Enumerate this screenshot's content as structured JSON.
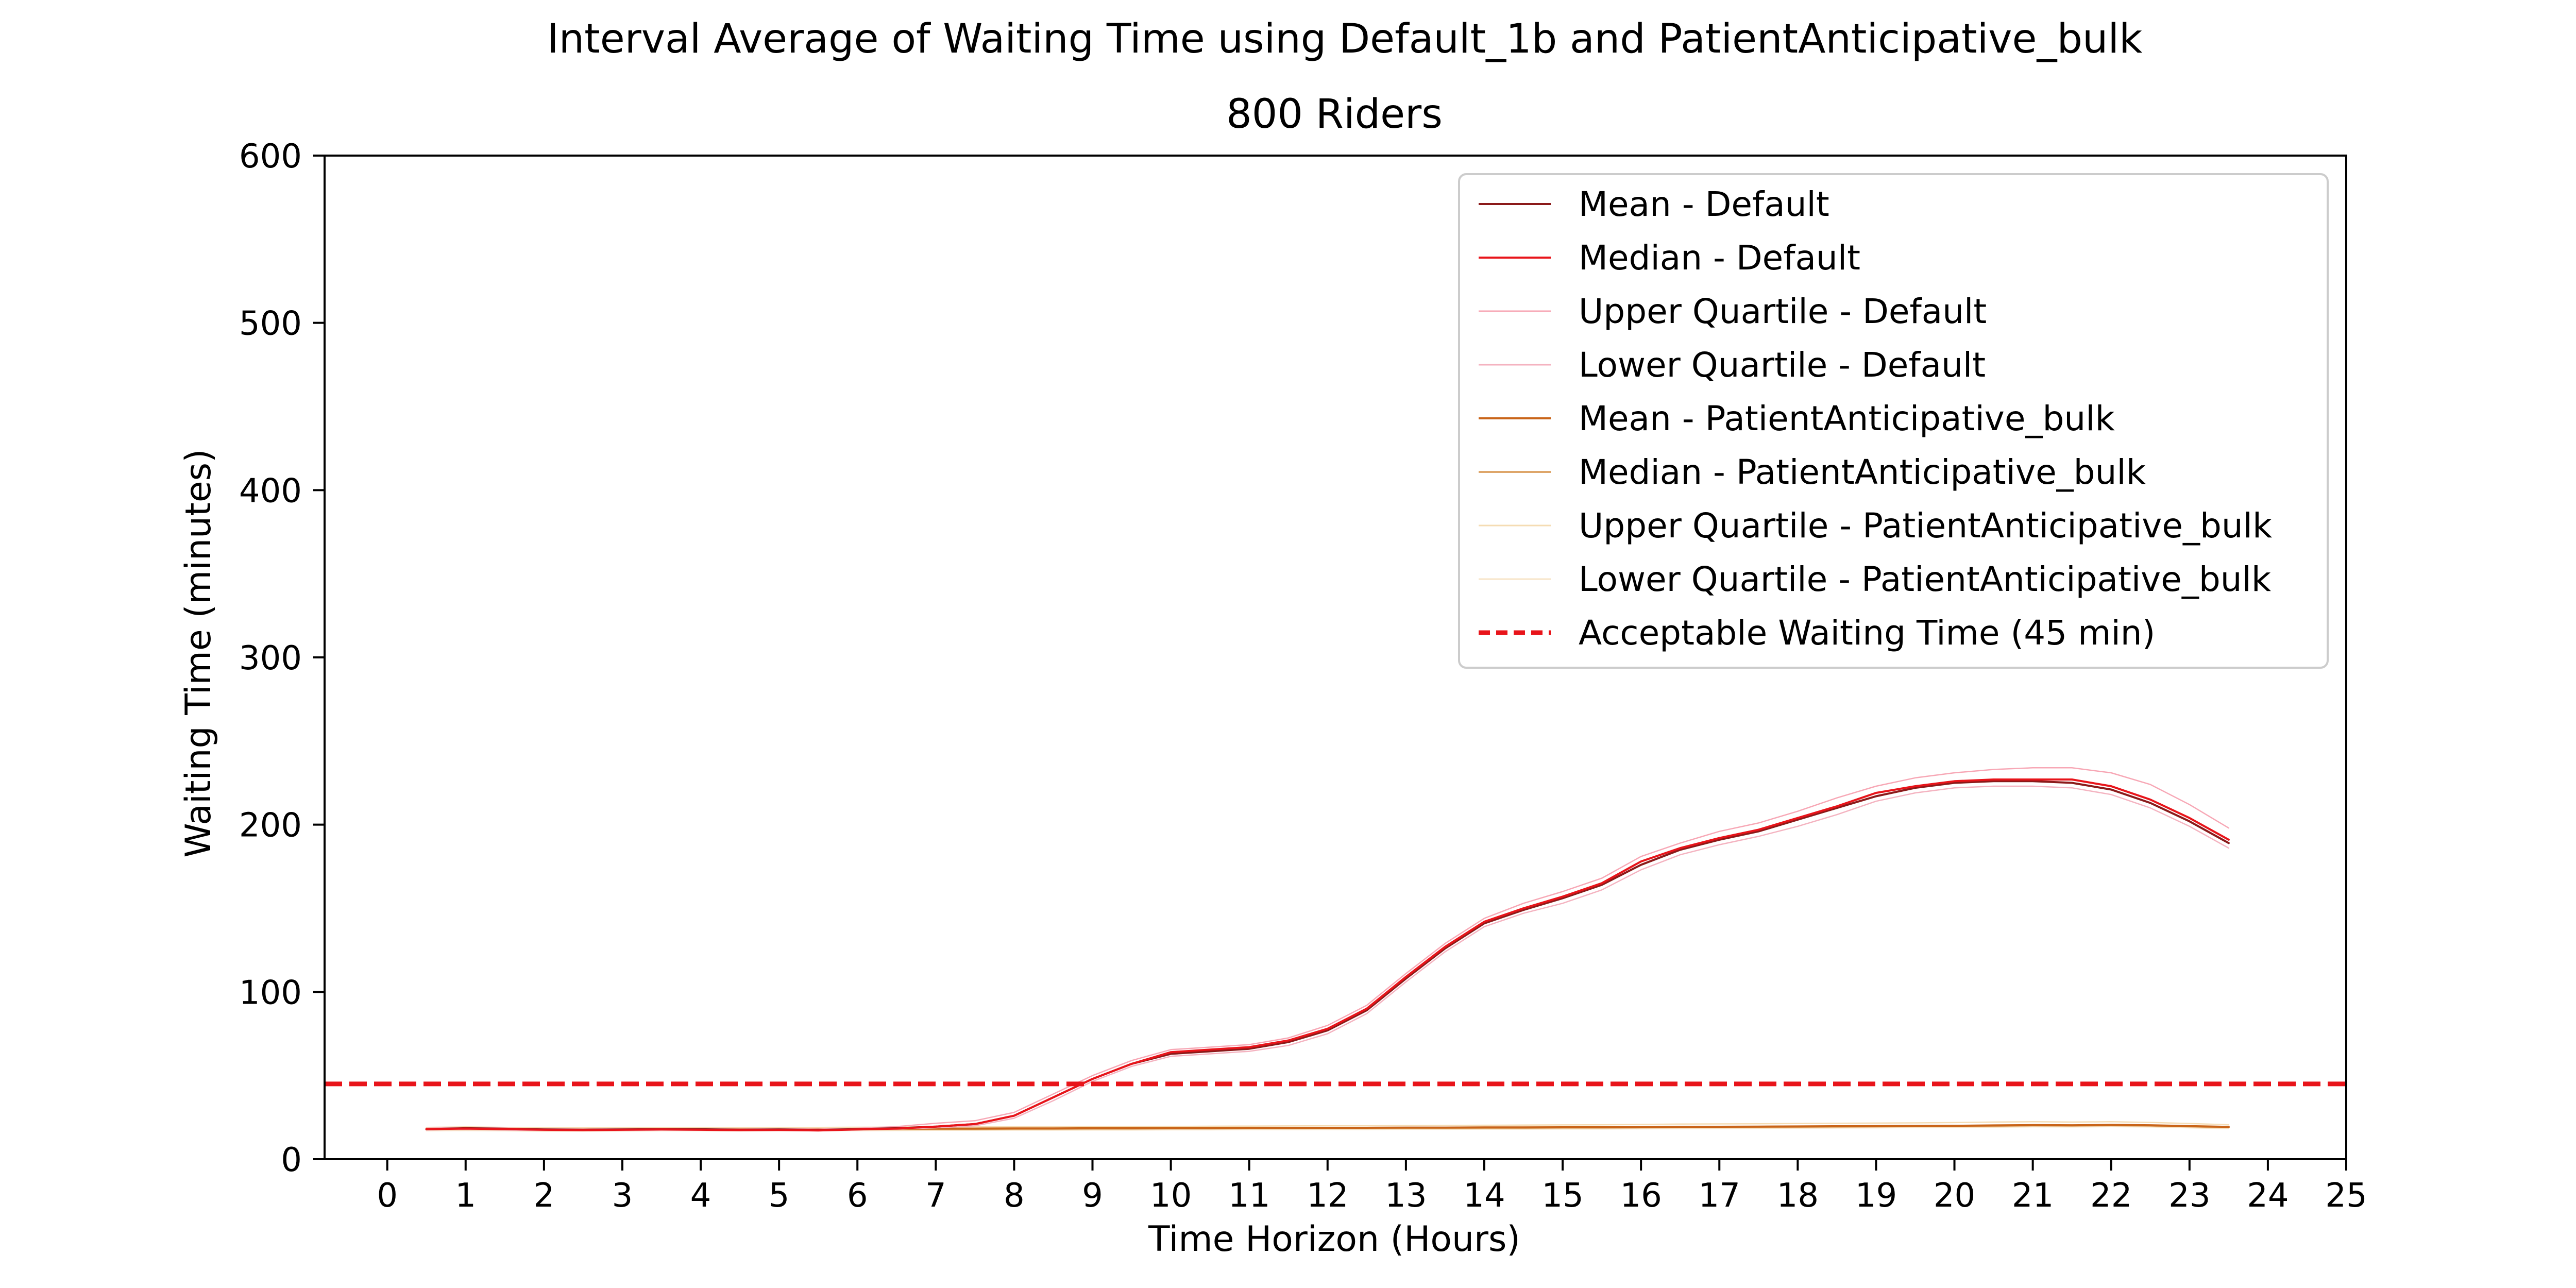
{
  "chart_data": {
    "type": "line",
    "title": "Interval Average of Waiting Time using Default_1b and PatientAnticipative_bulk",
    "subtitle": "800 Riders",
    "xlabel": "Time Horizon (Hours)",
    "ylabel": "Waiting Time (minutes)",
    "xlim": [
      -0.8,
      25
    ],
    "ylim": [
      0,
      600
    ],
    "xticks": [
      "0",
      "1",
      "2",
      "3",
      "4",
      "5",
      "6",
      "7",
      "8",
      "9",
      "10",
      "11",
      "12",
      "13",
      "14",
      "15",
      "16",
      "17",
      "18",
      "19",
      "20",
      "21",
      "22",
      "23",
      "24",
      "25"
    ],
    "yticks": [
      "0",
      "100",
      "200",
      "300",
      "400",
      "500",
      "600"
    ],
    "grid": false,
    "legend_position": "top-right",
    "x": [
      0.5,
      1,
      1.5,
      2,
      2.5,
      3,
      3.5,
      4,
      4.5,
      5,
      5.5,
      6,
      6.5,
      7,
      7.5,
      8,
      8.5,
      9,
      9.5,
      10,
      10.5,
      11,
      11.5,
      12,
      12.5,
      13,
      13.5,
      14,
      14.5,
      15,
      15.5,
      16,
      16.5,
      17,
      17.5,
      18,
      18.5,
      19,
      19.5,
      20,
      20.5,
      21,
      21.5,
      22,
      22.5,
      23,
      23.5
    ],
    "series": [
      {
        "name": "Mean - Default",
        "color": "#8b1a1a",
        "width": 4,
        "dash": "",
        "values": [
          18,
          18.5,
          18.2,
          17.8,
          17.6,
          17.8,
          18,
          17.9,
          17.6,
          17.8,
          17.5,
          18,
          18.5,
          19.5,
          21,
          26,
          37,
          48,
          57,
          63,
          64.5,
          66,
          70,
          77,
          89,
          108,
          126,
          141,
          149,
          156,
          164,
          176,
          185,
          191,
          196,
          203,
          210,
          217,
          222,
          225,
          226,
          226,
          225,
          221,
          213,
          202,
          189
        ]
      },
      {
        "name": "Median - Default",
        "color": "#e8141a",
        "width": 4,
        "dash": "",
        "values": [
          18,
          18.3,
          18,
          17.6,
          17.4,
          17.6,
          17.8,
          17.6,
          17.4,
          17.5,
          17.2,
          17.8,
          18.3,
          19.5,
          21,
          26,
          37,
          48,
          57,
          64,
          65.5,
          67,
          71,
          78,
          90,
          109,
          127,
          142,
          150,
          157,
          165,
          178,
          186,
          192,
          197,
          204,
          211,
          219,
          223,
          226,
          227,
          227,
          227,
          223,
          215,
          204,
          191
        ]
      },
      {
        "name": "Upper Quartile - Default",
        "color": "#f7a7b5",
        "width": 2.5,
        "dash": "",
        "values": [
          18.5,
          19,
          18.6,
          18.2,
          18,
          18.2,
          18.4,
          18.2,
          18,
          18.2,
          18,
          18.5,
          19.5,
          21.5,
          23,
          28,
          39,
          50,
          59,
          65.5,
          67,
          68.5,
          72.5,
          80,
          92,
          111,
          129,
          144,
          153,
          160,
          168,
          181,
          189,
          196,
          201,
          208,
          216,
          223,
          228,
          231,
          233,
          234,
          234,
          231,
          224,
          212,
          198
        ]
      },
      {
        "name": "Lower Quartile - Default",
        "color": "#f4b3c0",
        "width": 2.5,
        "dash": "",
        "values": [
          17.5,
          17.8,
          17.5,
          17.2,
          17,
          17.2,
          17.4,
          17.3,
          17,
          17.2,
          17,
          17.5,
          18,
          18.8,
          20,
          24.5,
          35,
          46.5,
          55.5,
          61.5,
          63,
          64.5,
          68,
          75,
          87,
          106,
          124,
          139,
          147,
          153,
          161,
          173,
          182,
          188,
          193,
          199,
          206,
          214,
          219,
          222,
          223,
          223,
          222,
          218,
          210,
          199,
          186
        ]
      },
      {
        "name": "Mean - PatientAnticipative_bulk",
        "color": "#c96418",
        "width": 4,
        "dash": "",
        "values": [
          18,
          18.2,
          18,
          17.8,
          17.8,
          17.9,
          18,
          18,
          17.9,
          18,
          18,
          18.1,
          18.2,
          18.3,
          18.3,
          18.4,
          18.4,
          18.5,
          18.5,
          18.6,
          18.6,
          18.7,
          18.7,
          18.8,
          18.8,
          18.9,
          18.9,
          19,
          19,
          19.1,
          19.1,
          19.2,
          19.3,
          19.4,
          19.5,
          19.6,
          19.7,
          19.8,
          19.9,
          20,
          20.2,
          20.4,
          20.3,
          20.5,
          20.3,
          19.8,
          19.3
        ]
      },
      {
        "name": "Median - PatientAnticipative_bulk",
        "color": "#dea66a",
        "width": 4,
        "dash": "",
        "values": [
          17.8,
          18,
          17.8,
          17.6,
          17.6,
          17.7,
          17.8,
          17.8,
          17.7,
          17.8,
          17.8,
          17.9,
          18,
          18.1,
          18.1,
          18.2,
          18.2,
          18.3,
          18.3,
          18.4,
          18.4,
          18.5,
          18.5,
          18.6,
          18.6,
          18.7,
          18.7,
          18.8,
          18.8,
          18.9,
          18.9,
          19,
          19.1,
          19.2,
          19.3,
          19.4,
          19.5,
          19.6,
          19.7,
          19.8,
          20,
          20.2,
          20.1,
          20.3,
          20.1,
          19.6,
          19.1
        ]
      },
      {
        "name": "Upper Quartile - PatientAnticipative_bulk",
        "color": "#f5dcb3",
        "width": 2.5,
        "dash": "",
        "values": [
          19,
          19.3,
          19,
          18.8,
          18.8,
          18.9,
          19,
          19,
          18.9,
          19,
          19,
          19.1,
          19.2,
          19.3,
          19.3,
          19.4,
          19.4,
          19.5,
          19.5,
          19.6,
          19.7,
          19.8,
          19.9,
          20,
          20,
          20.1,
          20.2,
          20.3,
          20.4,
          20.5,
          20.6,
          20.8,
          21,
          21.1,
          21.2,
          21.3,
          21.5,
          21.6,
          21.7,
          21.9,
          22.2,
          22.4,
          22.2,
          22.4,
          22,
          21.3,
          20.6
        ]
      },
      {
        "name": "Lower Quartile - PatientAnticipative_bulk",
        "color": "#f7e4c7",
        "width": 2.5,
        "dash": "",
        "values": [
          17,
          17.2,
          17,
          16.8,
          16.8,
          16.9,
          17,
          17,
          16.9,
          17,
          17,
          17.1,
          17.2,
          17.3,
          17.3,
          17.4,
          17.4,
          17.5,
          17.5,
          17.6,
          17.6,
          17.7,
          17.7,
          17.8,
          17.8,
          17.9,
          17.9,
          18,
          18,
          18.1,
          18.1,
          18.2,
          18.3,
          18.4,
          18.5,
          18.6,
          18.7,
          18.8,
          18.9,
          19,
          19.2,
          19.4,
          19.3,
          19.5,
          19.3,
          18.8,
          18.3
        ]
      }
    ],
    "reference_line": {
      "name": "Acceptable Waiting Time (45 min)",
      "y": 45,
      "color": "#e8141a",
      "dash": "dashed"
    }
  }
}
